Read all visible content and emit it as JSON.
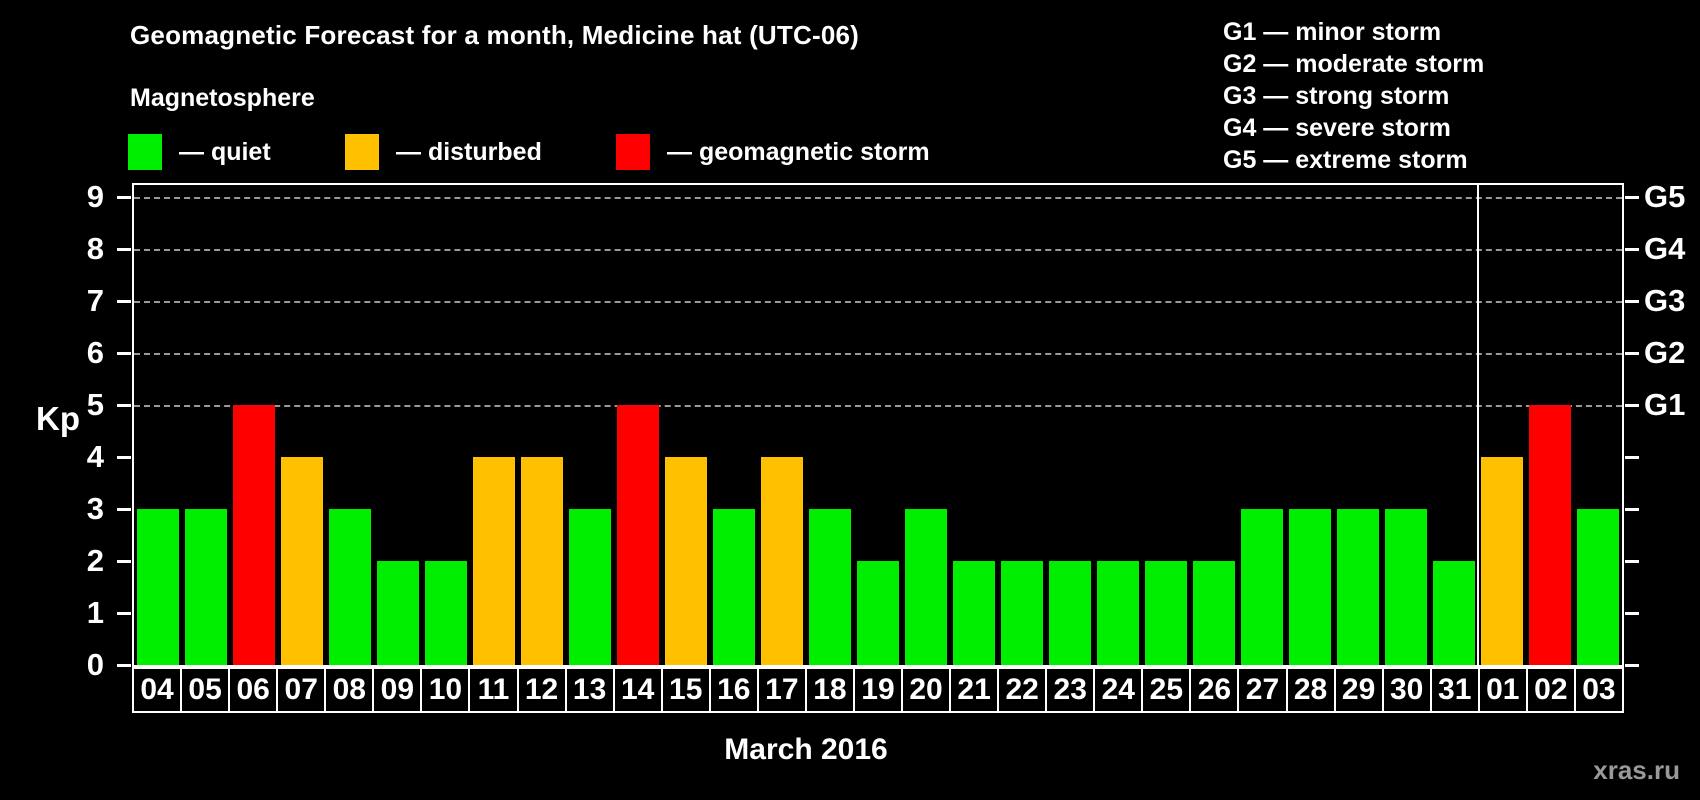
{
  "header": {
    "title": "Geomagnetic Forecast for a month, Medicine hat (UTC-06)",
    "subtitle": "Magnetosphere"
  },
  "magnetosphere_legend": [
    {
      "status": "quiet",
      "label": "— quiet",
      "color": "#00EE00"
    },
    {
      "status": "disturbed",
      "label": "— disturbed",
      "color": "#FFC000"
    },
    {
      "status": "storm",
      "label": "— geomagnetic storm",
      "color": "#FF0000"
    }
  ],
  "storm_scale_legend": [
    "G1 — minor storm",
    "G2 — moderate storm",
    "G3 — strong storm",
    "G4 — severe storm",
    "G5 — extreme storm"
  ],
  "footer": {
    "watermark": "xras.ru"
  },
  "chart_data": {
    "type": "bar",
    "title": "Geomagnetic Forecast for a month, Medicine hat (UTC-06)",
    "xlabel": "March 2016",
    "ylabel": "Kp",
    "ylim": [
      0,
      9.33
    ],
    "yticks": [
      0,
      1,
      2,
      3,
      4,
      5,
      6,
      7,
      8,
      9
    ],
    "gridlines_kp": [
      5,
      6,
      7,
      8,
      9
    ],
    "grid": "horizontal dashed lines at storm levels G1–G5",
    "legend_position": "top",
    "right_axis": [
      {
        "label": "G1",
        "kp": 5
      },
      {
        "label": "G2",
        "kp": 6
      },
      {
        "label": "G3",
        "kp": 7
      },
      {
        "label": "G4",
        "kp": 8
      },
      {
        "label": "G5",
        "kp": 9
      }
    ],
    "categories": [
      "04",
      "05",
      "06",
      "07",
      "08",
      "09",
      "10",
      "11",
      "12",
      "13",
      "14",
      "15",
      "16",
      "17",
      "18",
      "19",
      "20",
      "21",
      "22",
      "23",
      "24",
      "25",
      "26",
      "27",
      "28",
      "29",
      "30",
      "31",
      "01",
      "02",
      "03"
    ],
    "values": [
      3,
      3,
      5,
      4,
      3,
      2,
      2,
      4,
      4,
      3,
      5,
      4,
      3,
      4,
      3,
      2,
      3,
      2,
      2,
      2,
      2,
      2,
      2,
      3,
      3,
      3,
      3,
      2,
      4,
      5,
      3
    ],
    "statuses": [
      "quiet",
      "quiet",
      "storm",
      "disturbed",
      "quiet",
      "quiet",
      "quiet",
      "disturbed",
      "disturbed",
      "quiet",
      "storm",
      "disturbed",
      "quiet",
      "disturbed",
      "quiet",
      "quiet",
      "quiet",
      "quiet",
      "quiet",
      "quiet",
      "quiet",
      "quiet",
      "quiet",
      "quiet",
      "quiet",
      "quiet",
      "quiet",
      "quiet",
      "disturbed",
      "storm",
      "quiet"
    ],
    "month_separator_after": 28,
    "colors": {
      "quiet": "#00EE00",
      "disturbed": "#FFC000",
      "storm": "#FF0000"
    }
  }
}
